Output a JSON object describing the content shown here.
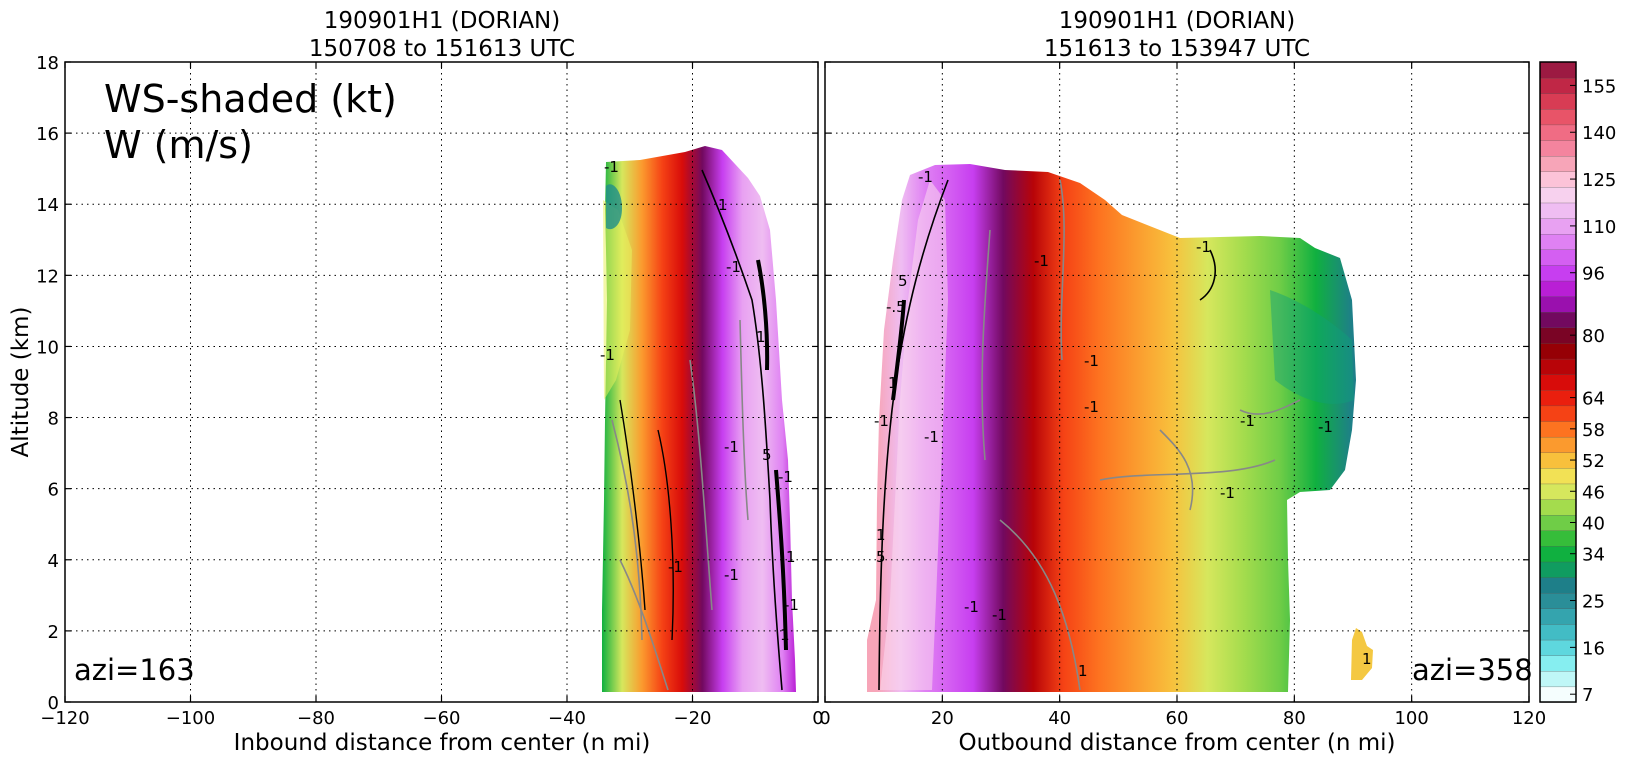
{
  "colorbar": {
    "levels": [
      7,
      10,
      13,
      16,
      19,
      22,
      25,
      28,
      31,
      34,
      37,
      40,
      43,
      46,
      49,
      52,
      55,
      58,
      61,
      64,
      68,
      72,
      76,
      80,
      84,
      88,
      92,
      96,
      100,
      105,
      110,
      115,
      120,
      125,
      130,
      135,
      140,
      145,
      150,
      155,
      160
    ],
    "tick_values": [
      7,
      16,
      25,
      34,
      40,
      46,
      52,
      58,
      64,
      80,
      96,
      110,
      125,
      140,
      155
    ],
    "colors": [
      "#f5fefe",
      "#bff7f7",
      "#86eef0",
      "#5ed7de",
      "#42bcc5",
      "#34a4ae",
      "#2a8e98",
      "#1e7f89",
      "#109c60",
      "#10b040",
      "#36bd3a",
      "#6fcd47",
      "#a4dc4d",
      "#d6e75d",
      "#f2e155",
      "#f8c03c",
      "#fb9a2e",
      "#fd7320",
      "#f54215",
      "#ea1f0e",
      "#d80c0a",
      "#b80408",
      "#960005",
      "#7a0425",
      "#72095f",
      "#9a10ae",
      "#b91fd5",
      "#c73ef0",
      "#d45ff2",
      "#df81f3",
      "#e8a1f2",
      "#efbdf2",
      "#f7d1ee",
      "#fcc3d8",
      "#f7a5b8",
      "#f4849e",
      "#f06c84",
      "#e85468",
      "#d83c54",
      "#c02746",
      "#9c1a42"
    ]
  },
  "chart_data": [
    {
      "type": "heatmap",
      "panel": "left",
      "title_line1": "190901H1 (DORIAN)",
      "title_line2": "150708 to 151613 UTC",
      "xlabel": "Inbound distance from center (n mi)",
      "ylabel": "Altitude (km)",
      "xlim": [
        -120,
        0
      ],
      "ylim": [
        0,
        18
      ],
      "xticks": [
        -120,
        -100,
        -80,
        -60,
        -40,
        -20,
        0
      ],
      "yticks": [
        0,
        2,
        4,
        6,
        8,
        10,
        12,
        14,
        16,
        18
      ],
      "grid": true,
      "legend_text_line1": "WS-shaded (kt)",
      "legend_text_line2": "W (m/s)",
      "azi_label": "azi=163",
      "wind_speed_profile": {
        "distance": [
          -34,
          -31,
          -28,
          -25,
          -22,
          -19,
          -16,
          -13,
          -10,
          -7,
          -5
        ],
        "speed_kt": [
          36,
          46,
          55,
          62,
          70,
          84,
          98,
          110,
          118,
          108,
          95
        ]
      },
      "domain": {
        "x": [
          -35,
          -5
        ],
        "top_altitude": [
          15.0,
          15.2,
          15.6,
          15.5,
          15.2,
          14.6,
          14.4
        ]
      },
      "contour_labels": [
        "-1",
        "1",
        "-1",
        "1",
        "5",
        "-1",
        "-1",
        "-1",
        "-1",
        "-1",
        "1",
        "-1",
        "1"
      ]
    },
    {
      "type": "heatmap",
      "panel": "right",
      "title_line1": "190901H1 (DORIAN)",
      "title_line2": "151613 to 153947 UTC",
      "xlabel": "Outbound distance from center (n mi)",
      "xlim": [
        0,
        120
      ],
      "ylim": [
        0,
        18
      ],
      "xticks": [
        0,
        20,
        40,
        60,
        80,
        100,
        120
      ],
      "yticks": [
        0,
        2,
        4,
        6,
        8,
        10,
        12,
        14,
        16,
        18
      ],
      "grid": true,
      "azi_label": "azi=358",
      "wind_speed_profile": {
        "distance": [
          9,
          13,
          17,
          21,
          25,
          30,
          35,
          40,
          46,
          52,
          58,
          64,
          70,
          76,
          82,
          88
        ],
        "speed_kt": [
          130,
          118,
          108,
          100,
          96,
          86,
          75,
          62,
          58,
          55,
          52,
          48,
          44,
          40,
          34,
          30
        ]
      },
      "contour_labels": [
        "-1",
        "-.5",
        "5",
        "1",
        "-1",
        "-1",
        "-1",
        "-1",
        "-1",
        "-1",
        "-1",
        "-1",
        "-1",
        "-1",
        "-1",
        "1",
        "5",
        "1",
        "1"
      ]
    }
  ]
}
